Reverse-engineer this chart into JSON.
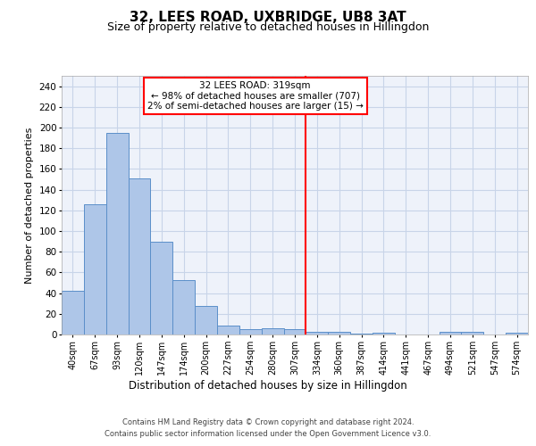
{
  "title": "32, LEES ROAD, UXBRIDGE, UB8 3AT",
  "subtitle": "Size of property relative to detached houses in Hillingdon",
  "xlabel": "Distribution of detached houses by size in Hillingdon",
  "ylabel": "Number of detached properties",
  "categories": [
    "40sqm",
    "67sqm",
    "93sqm",
    "120sqm",
    "147sqm",
    "174sqm",
    "200sqm",
    "227sqm",
    "254sqm",
    "280sqm",
    "307sqm",
    "334sqm",
    "360sqm",
    "387sqm",
    "414sqm",
    "441sqm",
    "467sqm",
    "494sqm",
    "521sqm",
    "547sqm",
    "574sqm"
  ],
  "values": [
    42,
    126,
    195,
    151,
    90,
    53,
    28,
    9,
    5,
    6,
    5,
    3,
    3,
    1,
    2,
    0,
    0,
    3,
    3,
    0,
    2
  ],
  "bar_color": "#aec6e8",
  "bar_edge_color": "#5b8fc9",
  "vline_x": 10.5,
  "annotation_line1": "32 LEES ROAD: 319sqm",
  "annotation_line2": "← 98% of detached houses are smaller (707)",
  "annotation_line3": "2% of semi-detached houses are larger (15) →",
  "footer1": "Contains HM Land Registry data © Crown copyright and database right 2024.",
  "footer2": "Contains public sector information licensed under the Open Government Licence v3.0.",
  "ylim": [
    0,
    250
  ],
  "yticks": [
    0,
    20,
    40,
    60,
    80,
    100,
    120,
    140,
    160,
    180,
    200,
    220,
    240
  ],
  "grid_color": "#c8d4e8",
  "background_color": "#eef2fa",
  "title_fontsize": 11,
  "subtitle_fontsize": 9
}
